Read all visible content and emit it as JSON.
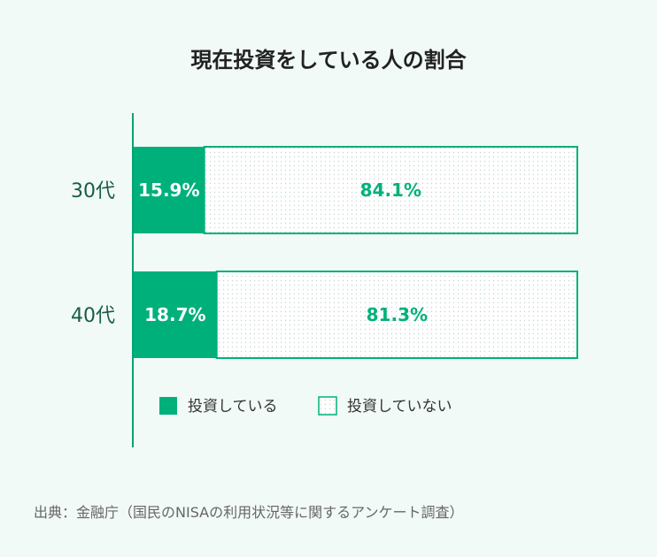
{
  "chart_data": {
    "type": "bar",
    "orientation": "horizontal",
    "stacked": true,
    "title": "現在投資をしている人の割合",
    "categories": [
      "30代",
      "40代"
    ],
    "series": [
      {
        "name": "投資している",
        "values": [
          15.9,
          18.7
        ],
        "labels": [
          "15.9%",
          "18.7%"
        ],
        "color": "#00b07b",
        "fill": "solid"
      },
      {
        "name": "投資していない",
        "values": [
          84.1,
          81.3
        ],
        "labels": [
          "84.1%",
          "81.3%"
        ],
        "color": "#00b07b",
        "fill": "dotted"
      }
    ],
    "xlim": [
      0,
      100
    ],
    "legend_position": "bottom",
    "grid": false
  },
  "source": "出典：金融庁（国民のNISAの利用状況等に関するアンケート調査）"
}
